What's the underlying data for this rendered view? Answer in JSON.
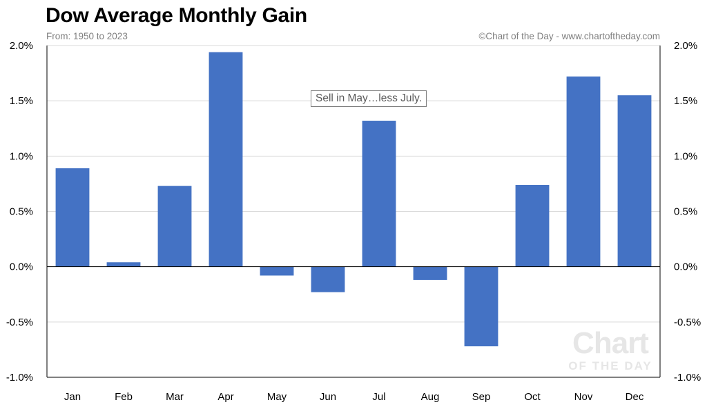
{
  "header": {
    "title": "Dow Average Monthly Gain",
    "subtitle": "From: 1950 to 2023",
    "credit": "©Chart of the Day - www.chartoftheday.com"
  },
  "watermark": {
    "line1": "Chart",
    "line2": "OF THE DAY"
  },
  "colors": {
    "bar": "#4472c4",
    "grid": "#d9d9d9",
    "axis": "#000000"
  },
  "chart_data": {
    "type": "bar",
    "title": "Dow Average Monthly Gain",
    "subtitle": "From: 1950 to 2023",
    "categories": [
      "Jan",
      "Feb",
      "Mar",
      "Apr",
      "May",
      "Jun",
      "Jul",
      "Aug",
      "Sep",
      "Oct",
      "Nov",
      "Dec"
    ],
    "values": [
      0.89,
      0.04,
      0.73,
      1.94,
      -0.08,
      -0.23,
      1.32,
      -0.12,
      -0.72,
      0.74,
      1.72,
      1.55
    ],
    "unit": "%",
    "ylim": [
      -1.0,
      2.0
    ],
    "yticks": [
      "2.0%",
      "1.5%",
      "1.0%",
      "0.5%",
      "0.0%",
      "-0.5%",
      "-1.0%"
    ],
    "ytick_values": [
      2.0,
      1.5,
      1.0,
      0.5,
      0.0,
      -0.5,
      -1.0
    ],
    "dual_y_axis": true,
    "grid": true,
    "annotation": "Sell in May…less July."
  }
}
